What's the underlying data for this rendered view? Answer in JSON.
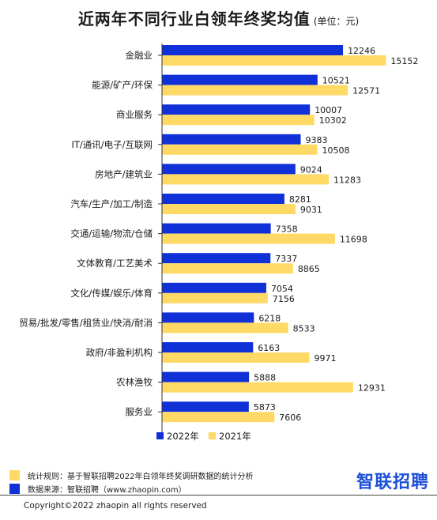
{
  "colors": {
    "series_2022": "#1030d8",
    "series_2021": "#ffd966",
    "axis": "#333333"
  },
  "chart_data": {
    "type": "bar",
    "orientation": "horizontal",
    "title": "近两年不同行业白领年终奖均值",
    "unit": "(单位：元)",
    "categories": [
      "金融业",
      "能源/矿产/环保",
      "商业服务",
      "IT/通讯/电子/互联网",
      "房地产/建筑业",
      "汽车/生产/加工/制造",
      "交通/运输/物流/仓储",
      "文体教育/工艺美术",
      "文化/传媒/娱乐/体育",
      "贸易/批发/零售/租赁业/快消/耐消",
      "政府/非盈利机构",
      "农林渔牧",
      "服务业"
    ],
    "series": [
      {
        "name": "2022年",
        "values": [
          12246,
          10521,
          10007,
          9383,
          9024,
          8281,
          7358,
          7337,
          7054,
          6218,
          6163,
          5888,
          5873
        ]
      },
      {
        "name": "2021年",
        "values": [
          15152,
          12571,
          10302,
          10508,
          11283,
          9031,
          11698,
          8865,
          7156,
          8533,
          9971,
          12931,
          7606
        ]
      }
    ],
    "xlim": [
      0,
      17000
    ],
    "legend_position": "bottom",
    "grid": false
  },
  "footer": {
    "rule_text": "统计规则：基于智联招聘2022年白领年终奖调研数据的统计分析",
    "source_text": "数据来源：智联招聘（www.zhaopin.com）",
    "brand": "智联招聘",
    "copyright": "Copyright©2022 zhaopin all rights reserved"
  }
}
